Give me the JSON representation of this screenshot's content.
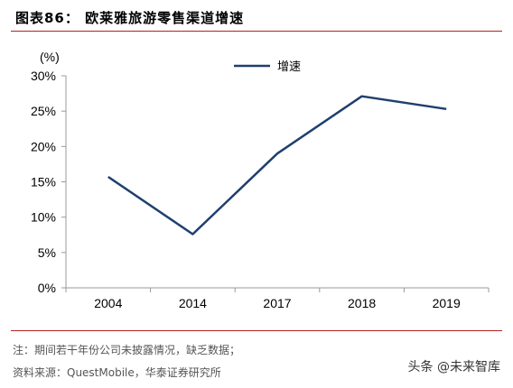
{
  "header": {
    "title": "图表86：  欧莱雅旅游零售渠道增速"
  },
  "footer": {
    "note": "注：期间若干年份公司未披露情况，缺乏数据；",
    "source": "资料来源：QuestMobile，华泰证券研究所",
    "watermark": "头条 @未来智库"
  },
  "colors": {
    "rule": "#b22222",
    "line": "#1f3f6e",
    "axis": "#999999"
  },
  "chart_data": {
    "type": "line",
    "title": "",
    "xlabel": "",
    "ylabel": "(%)",
    "categories": [
      "2004",
      "2014",
      "2017",
      "2018",
      "2019"
    ],
    "series": [
      {
        "name": "增速",
        "values": [
          15.7,
          7.6,
          19.0,
          27.1,
          25.3
        ]
      }
    ],
    "yticks": [
      "0%",
      "5%",
      "10%",
      "15%",
      "20%",
      "25%",
      "30%"
    ],
    "ylim": [
      0,
      30
    ],
    "grid": false,
    "legend": "top-center"
  }
}
